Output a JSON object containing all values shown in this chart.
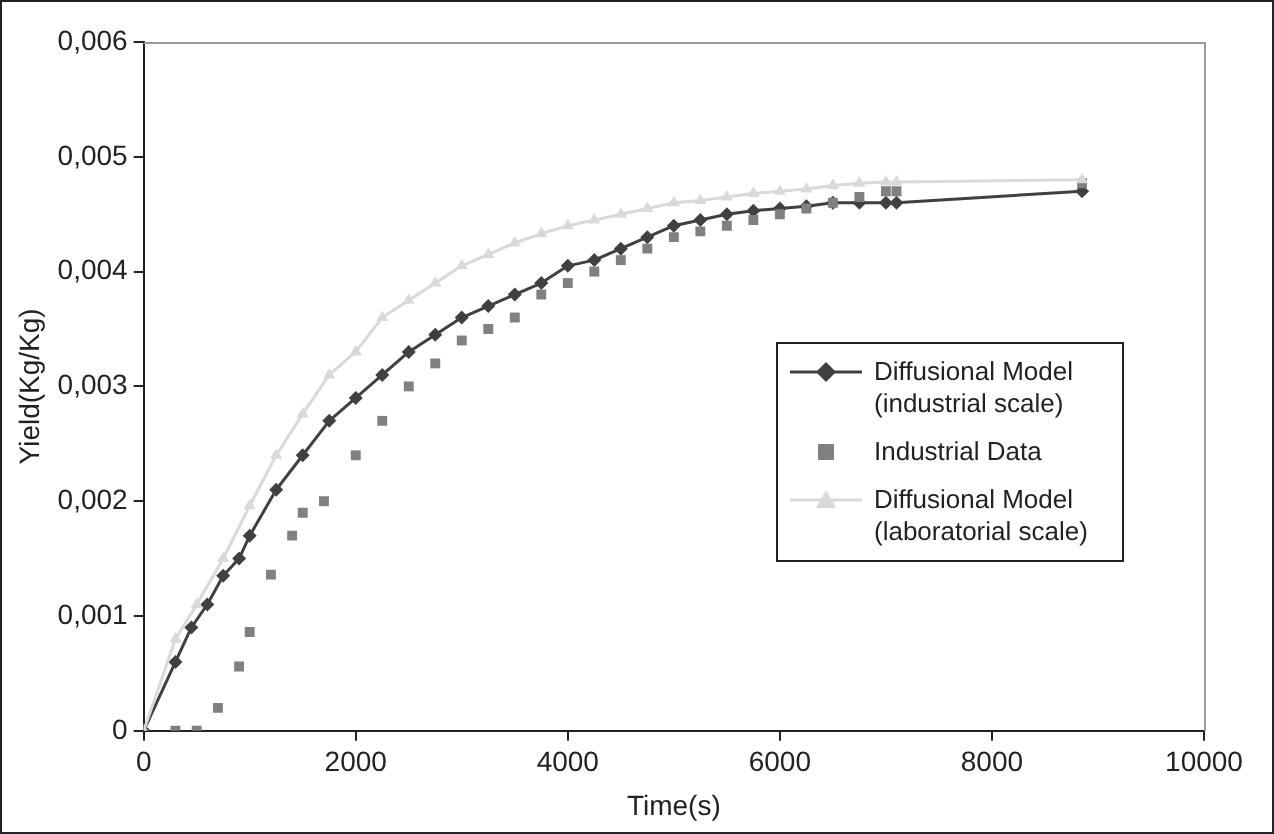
{
  "chart_data": {
    "type": "line",
    "xlabel": "Time(s)",
    "ylabel": "Yield(Kg/Kg)",
    "xlim": [
      0,
      10000
    ],
    "xticks": [
      0,
      2000,
      4000,
      6000,
      8000,
      10000
    ],
    "ylim": [
      0,
      0.006
    ],
    "yticks": [
      {
        "value": 0,
        "label": "0"
      },
      {
        "value": 0.001,
        "label": "0,001"
      },
      {
        "value": 0.002,
        "label": "0,002"
      },
      {
        "value": 0.003,
        "label": "0,003"
      },
      {
        "value": 0.004,
        "label": "0,004"
      },
      {
        "value": 0.005,
        "label": "0,005"
      },
      {
        "value": 0.006,
        "label": "0,006"
      }
    ],
    "grid": false,
    "legend": "right",
    "series": [
      {
        "name": "Diffusional Model (industrial scale)",
        "marker": "diamond",
        "line_style": "solid",
        "color": "#404040",
        "x": [
          0,
          300,
          450,
          600,
          750,
          900,
          1000,
          1250,
          1500,
          1750,
          2000,
          2250,
          2500,
          2750,
          3000,
          3250,
          3500,
          3750,
          4000,
          4250,
          4500,
          4750,
          5000,
          5250,
          5500,
          5750,
          6000,
          6250,
          6500,
          6750,
          7000,
          7100,
          8850
        ],
        "values": [
          0,
          0.0006,
          0.0009,
          0.0011,
          0.00135,
          0.0015,
          0.0017,
          0.0021,
          0.0024,
          0.0027,
          0.0029,
          0.0031,
          0.0033,
          0.00345,
          0.0036,
          0.0037,
          0.0038,
          0.0039,
          0.00405,
          0.0041,
          0.0042,
          0.0043,
          0.0044,
          0.00445,
          0.0045,
          0.00453,
          0.00455,
          0.00457,
          0.0046,
          0.0046,
          0.0046,
          0.0046,
          0.0047
        ]
      },
      {
        "name": "Industrial Data",
        "type": "scatter",
        "marker": "square",
        "color": "#808080",
        "x": [
          300,
          500,
          700,
          900,
          1000,
          1200,
          1400,
          1500,
          1700,
          2000,
          2250,
          2500,
          2750,
          3000,
          3250,
          3500,
          3750,
          4000,
          4250,
          4500,
          4750,
          5000,
          5250,
          5500,
          5750,
          6000,
          6250,
          6500,
          6750,
          7000,
          7100,
          8850
        ],
        "values": [
          0,
          0,
          0.0002,
          0.00056,
          0.00086,
          0.00136,
          0.0017,
          0.0019,
          0.002,
          0.0024,
          0.0027,
          0.003,
          0.0032,
          0.0034,
          0.0035,
          0.0036,
          0.0038,
          0.0039,
          0.004,
          0.0041,
          0.0042,
          0.0043,
          0.00435,
          0.0044,
          0.00445,
          0.0045,
          0.00455,
          0.0046,
          0.00465,
          0.0047,
          0.0047,
          0.00477
        ]
      },
      {
        "name": "Diffusional Model (laboratorial scale)",
        "marker": "triangle",
        "line_style": "solid",
        "color": "#d9d9d9",
        "x": [
          0,
          300,
          500,
          750,
          1000,
          1250,
          1500,
          1750,
          2000,
          2250,
          2500,
          2750,
          3000,
          3250,
          3500,
          3750,
          4000,
          4250,
          4500,
          4750,
          5000,
          5250,
          5500,
          5750,
          6000,
          6250,
          6500,
          6750,
          7000,
          7100,
          8850
        ],
        "values": [
          0,
          0.0008,
          0.0011,
          0.0015,
          0.00196,
          0.0024,
          0.00276,
          0.0031,
          0.0033,
          0.0036,
          0.00375,
          0.0039,
          0.00405,
          0.00415,
          0.00425,
          0.00433,
          0.0044,
          0.00445,
          0.0045,
          0.00455,
          0.0046,
          0.00462,
          0.00465,
          0.00468,
          0.0047,
          0.00472,
          0.00475,
          0.00477,
          0.00478,
          0.00478,
          0.0048
        ]
      }
    ]
  }
}
